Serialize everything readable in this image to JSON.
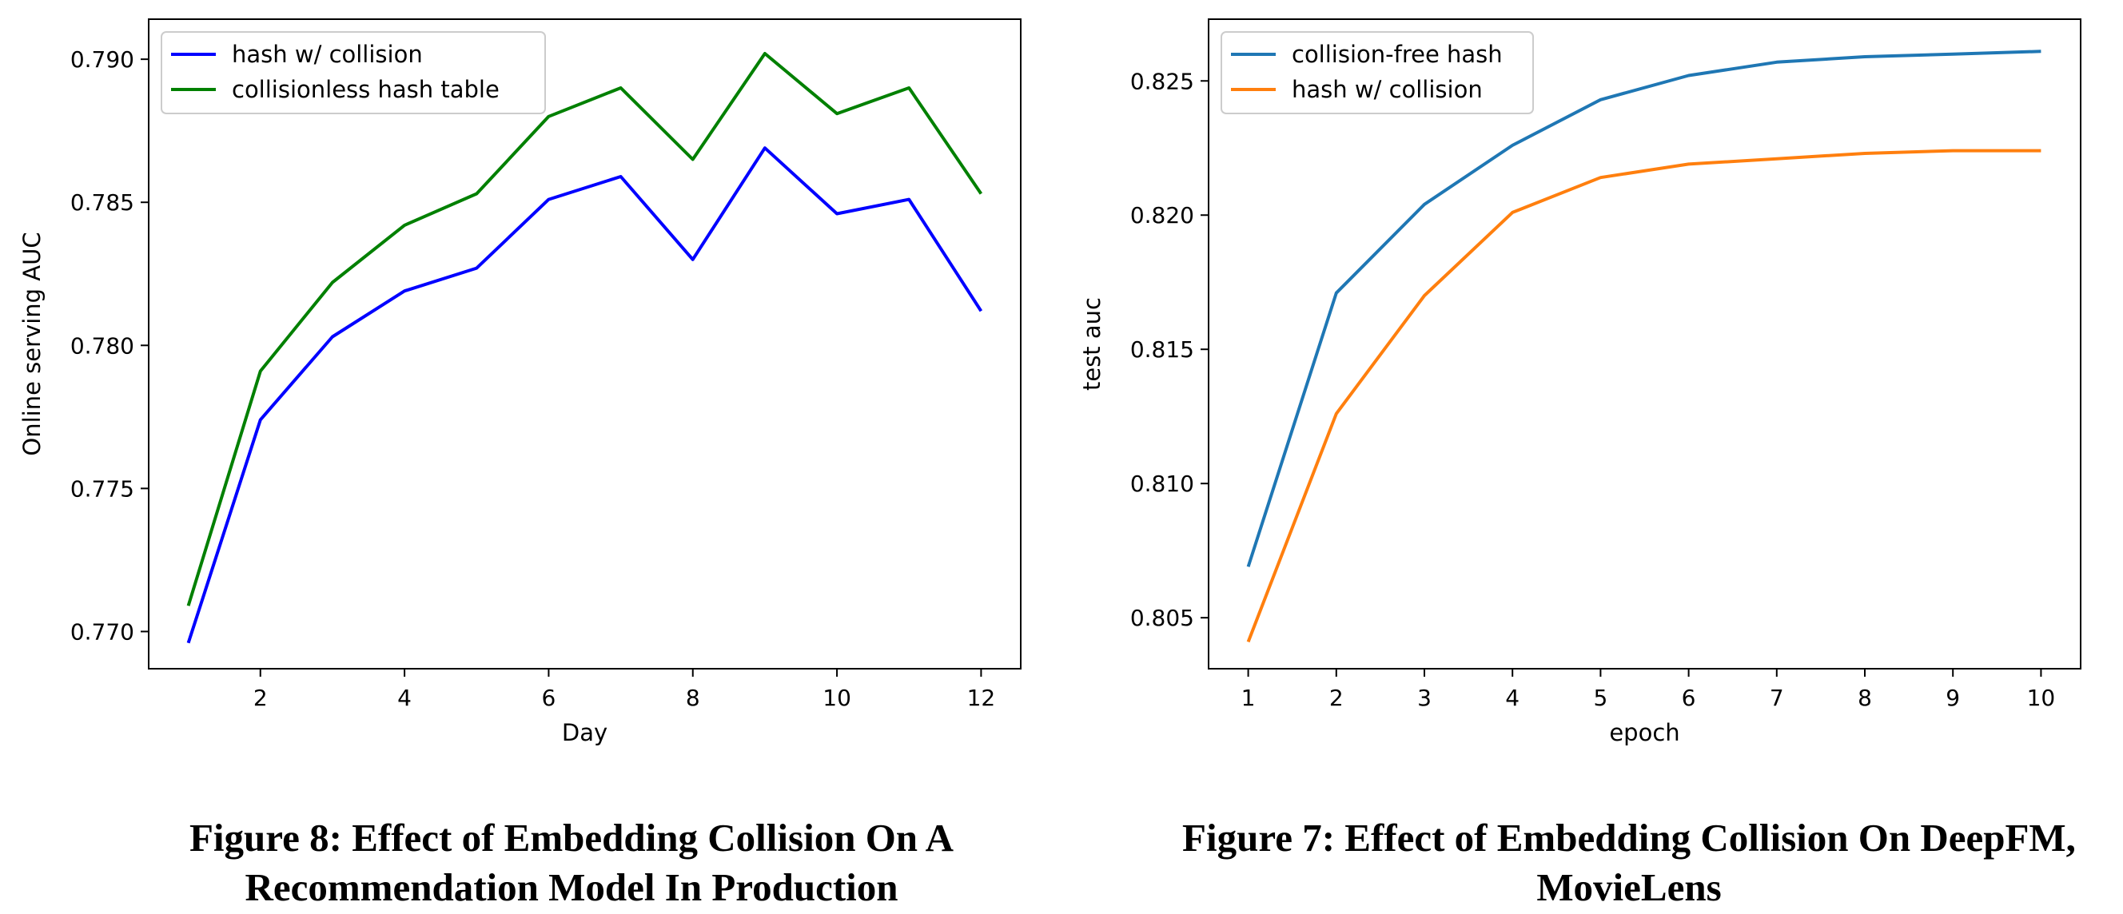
{
  "chart_data": [
    {
      "type": "line",
      "title": "",
      "xlabel": "Day",
      "ylabel": "Online serving AUC",
      "x": [
        1,
        2,
        3,
        4,
        5,
        6,
        7,
        8,
        9,
        10,
        11,
        12
      ],
      "xticks": [
        2,
        4,
        6,
        8,
        10,
        12
      ],
      "xlim": [
        0.45,
        12.55
      ],
      "yticks": [
        0.77,
        0.775,
        0.78,
        0.785,
        0.79
      ],
      "ytick_labels": [
        "0.770",
        "0.775",
        "0.780",
        "0.785",
        "0.790"
      ],
      "ylim": [
        0.7687,
        0.7914
      ],
      "legend_position": "top-left",
      "grid": false,
      "series": [
        {
          "name": "hash w/ collision",
          "color": "#0000ff",
          "values": [
            0.7696,
            0.7774,
            0.7803,
            0.7819,
            0.7827,
            0.7851,
            0.7859,
            0.783,
            0.7869,
            0.7846,
            0.7851,
            0.7812
          ]
        },
        {
          "name": "collisionless hash table",
          "color": "#008000",
          "values": [
            0.7709,
            0.7791,
            0.7822,
            0.7842,
            0.7853,
            0.788,
            0.789,
            0.7865,
            0.7902,
            0.7881,
            0.789,
            0.7853
          ]
        }
      ]
    },
    {
      "type": "line",
      "title": "",
      "xlabel": "epoch",
      "ylabel": "test auc",
      "x": [
        1,
        2,
        3,
        4,
        5,
        6,
        7,
        8,
        9,
        10
      ],
      "xticks": [
        1,
        2,
        3,
        4,
        5,
        6,
        7,
        8,
        9,
        10
      ],
      "xlim": [
        0.55,
        10.45
      ],
      "yticks": [
        0.805,
        0.81,
        0.815,
        0.82,
        0.825
      ],
      "ytick_labels": [
        "0.805",
        "0.810",
        "0.815",
        "0.820",
        "0.825"
      ],
      "ylim": [
        0.8031,
        0.8273
      ],
      "legend_position": "top-left",
      "grid": false,
      "series": [
        {
          "name": "collision-free hash",
          "color": "#1f77b4",
          "values": [
            0.8069,
            0.8171,
            0.8204,
            0.8226,
            0.8243,
            0.8252,
            0.8257,
            0.8259,
            0.826,
            0.8261
          ]
        },
        {
          "name": "hash w/ collision",
          "color": "#ff7f0e",
          "values": [
            0.8041,
            0.8126,
            0.817,
            0.8201,
            0.8214,
            0.8219,
            0.8221,
            0.8223,
            0.8224,
            0.8224
          ]
        }
      ]
    }
  ],
  "captions": {
    "left": "Figure 8: Effect of Embedding Collision On A Recommendation Model In Production",
    "right": "Figure 7: Effect of Embedding Collision On DeepFM, MovieLens"
  }
}
